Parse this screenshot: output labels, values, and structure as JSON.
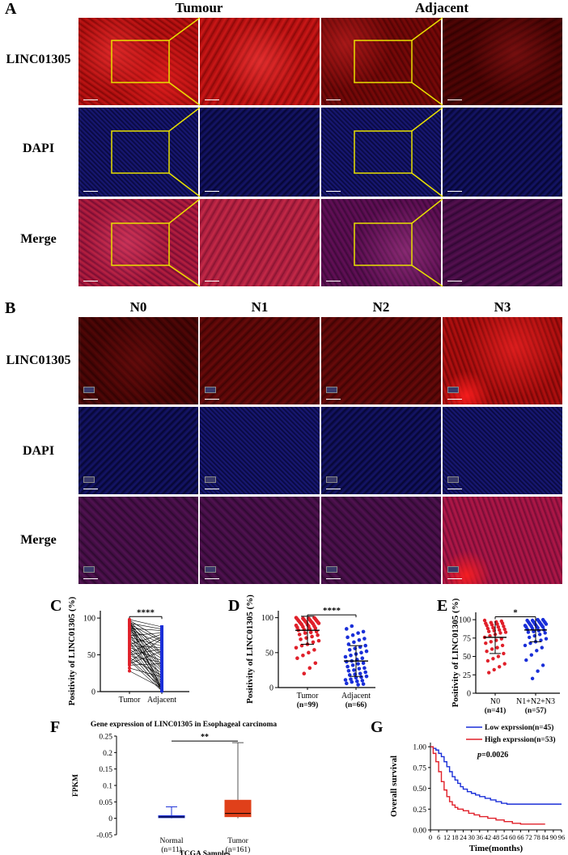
{
  "panelA": {
    "letter": "A",
    "columns": [
      "Tumour",
      "Adjacent"
    ],
    "rows": [
      "LINC01305",
      "DAPI",
      "Merge"
    ]
  },
  "panelB": {
    "letter": "B",
    "columns": [
      "N0",
      "N1",
      "N2",
      "N3"
    ],
    "rows": [
      "LINC01305",
      "DAPI",
      "Merge"
    ]
  },
  "panelC": {
    "letter": "C"
  },
  "panelD": {
    "letter": "D"
  },
  "panelE": {
    "letter": "E"
  },
  "panelF": {
    "letter": "F"
  },
  "panelG": {
    "letter": "G"
  },
  "chart_data": [
    {
      "id": "C",
      "type": "scatter",
      "ylabel": "Positivity of LINC01305 (%)",
      "categories": [
        "Tumor",
        "Adjacent"
      ],
      "yticks": [
        0,
        50,
        100
      ],
      "ylim": [
        0,
        110
      ],
      "significance": "****",
      "paired": true,
      "colors": {
        "Tumor": "#e0202a",
        "Adjacent": "#1a2fd8"
      },
      "tumor_values": [
        98,
        97,
        96,
        95,
        95,
        94,
        93,
        92,
        91,
        90,
        89,
        88,
        86,
        85,
        83,
        82,
        80,
        78,
        76,
        74,
        72,
        70,
        68,
        66,
        64,
        62,
        60,
        58,
        56,
        54,
        52,
        50,
        48,
        46,
        44,
        42,
        40,
        38,
        36,
        32,
        28
      ],
      "adjacent_values": [
        88,
        85,
        83,
        80,
        78,
        75,
        72,
        70,
        68,
        65,
        62,
        60,
        58,
        55,
        52,
        50,
        48,
        45,
        42,
        40,
        38,
        35,
        32,
        30,
        28,
        25,
        22,
        20,
        18,
        15,
        12,
        10,
        8,
        6,
        5,
        4,
        3,
        2,
        2,
        1,
        1
      ]
    },
    {
      "id": "D",
      "type": "scatter",
      "ylabel": "Positivity of LINC01305 (%)",
      "categories": [
        "Tumor\n(n=99)",
        "Adjacent\n(n=66)"
      ],
      "category_lines": [
        [
          "Tumor",
          "(n=99)"
        ],
        [
          "Adjacent",
          "(n=66)"
        ]
      ],
      "yticks": [
        0,
        50,
        100
      ],
      "ylim": [
        0,
        110
      ],
      "significance": "****",
      "mean": [
        82,
        38
      ],
      "sd": [
        20,
        22
      ],
      "colors": {
        "Tumor": "#e0202a",
        "Adjacent": "#1a2fd8"
      },
      "tumor_values": [
        100,
        100,
        99,
        99,
        98,
        98,
        97,
        97,
        96,
        96,
        95,
        95,
        94,
        94,
        93,
        93,
        92,
        92,
        91,
        90,
        90,
        89,
        88,
        88,
        87,
        86,
        85,
        84,
        83,
        82,
        80,
        79,
        78,
        76,
        75,
        73,
        71,
        69,
        67,
        65,
        62,
        60,
        57,
        54,
        50,
        46,
        42,
        35,
        28,
        20
      ],
      "adjacent_values": [
        88,
        84,
        80,
        78,
        75,
        72,
        70,
        68,
        65,
        62,
        60,
        58,
        56,
        54,
        52,
        50,
        48,
        46,
        44,
        42,
        40,
        38,
        37,
        35,
        34,
        32,
        30,
        28,
        27,
        25,
        24,
        22,
        20,
        19,
        18,
        16,
        15,
        14,
        12,
        11,
        10,
        9,
        8,
        6,
        5,
        4
      ]
    },
    {
      "id": "E",
      "type": "scatter",
      "ylabel": "Positivity of LINC01305 (%)",
      "categories": [
        "N0\n(n=41)",
        "N1+N2+N3\n(n=57)"
      ],
      "category_lines": [
        [
          "N0",
          "(n=41)"
        ],
        [
          "N1+N2+N3",
          "(n=57)"
        ]
      ],
      "yticks": [
        0,
        25,
        50,
        75,
        100
      ],
      "ylim": [
        0,
        110
      ],
      "significance": "*",
      "mean": [
        76,
        86
      ],
      "sd": [
        22,
        16
      ],
      "colors": {
        "N0": "#e0202a",
        "N1+N2+N3": "#1a2fd8"
      },
      "n0_values": [
        99,
        98,
        97,
        96,
        95,
        95,
        94,
        93,
        92,
        91,
        90,
        89,
        88,
        87,
        86,
        85,
        84,
        83,
        82,
        80,
        78,
        76,
        74,
        72,
        70,
        68,
        65,
        62,
        60,
        57,
        54,
        50,
        47,
        44,
        40,
        36,
        32,
        28
      ],
      "n123_values": [
        100,
        100,
        99,
        99,
        98,
        98,
        97,
        97,
        96,
        96,
        95,
        95,
        94,
        94,
        93,
        93,
        92,
        92,
        91,
        91,
        90,
        90,
        89,
        88,
        87,
        86,
        85,
        84,
        83,
        82,
        80,
        78,
        76,
        74,
        72,
        70,
        68,
        65,
        62,
        58,
        52,
        45,
        38,
        30,
        20
      ]
    },
    {
      "id": "F",
      "type": "box",
      "title": "Gene expression of LINC01305 in Esophageal carcinoma",
      "ylabel": "FPKM",
      "xlabel": "TCGA Samples",
      "categories": [
        "Normal\n(n=11)",
        "Tumor\n(n=161)"
      ],
      "category_lines": [
        [
          "Normal",
          "(n=11)"
        ],
        [
          "Tumor",
          "(n=161)"
        ]
      ],
      "yticks": [
        "-0.05",
        "0",
        "0.05",
        "0.1",
        "0.15",
        "0.2",
        "0.25"
      ],
      "ylim": [
        -0.05,
        0.25
      ],
      "significance": "**",
      "colors": {
        "Normal": "#1a2fd8",
        "Tumor": "#e0401a"
      },
      "boxes": [
        {
          "min": 0,
          "q1": 0.002,
          "median": 0.004,
          "q3": 0.008,
          "max": 0.035
        },
        {
          "min": 0,
          "q1": 0.005,
          "median": 0.015,
          "q3": 0.055,
          "max": 0.23
        }
      ]
    },
    {
      "id": "G",
      "type": "line",
      "ylabel": "Overall survival",
      "xlabel": "Time(months)",
      "xticks": [
        0,
        6,
        12,
        18,
        24,
        30,
        36,
        42,
        48,
        54,
        60,
        66,
        72,
        78,
        84,
        90,
        96
      ],
      "yticks": [
        "0.00",
        "0.25",
        "0.50",
        "0.75",
        "1.00"
      ],
      "xlim": [
        0,
        96
      ],
      "ylim": [
        0,
        1.05
      ],
      "pvalue_label": "p",
      "pvalue_text": "=0.0026",
      "series": [
        {
          "name": "Low exprssion(n=45)",
          "color": "#1a2fd8",
          "x": [
            0,
            2,
            4,
            6,
            8,
            10,
            12,
            14,
            16,
            18,
            20,
            22,
            24,
            27,
            30,
            33,
            36,
            40,
            44,
            48,
            52,
            56,
            96
          ],
          "y": [
            1.0,
            0.98,
            0.96,
            0.92,
            0.88,
            0.82,
            0.76,
            0.7,
            0.64,
            0.6,
            0.56,
            0.52,
            0.49,
            0.46,
            0.44,
            0.42,
            0.4,
            0.38,
            0.36,
            0.34,
            0.32,
            0.31,
            0.31
          ]
        },
        {
          "name": "High exprssion(n=53)",
          "color": "#e0202a",
          "x": [
            0,
            2,
            4,
            6,
            8,
            10,
            12,
            14,
            16,
            18,
            20,
            24,
            28,
            32,
            36,
            42,
            48,
            54,
            60,
            66,
            72,
            84
          ],
          "y": [
            1.0,
            0.92,
            0.82,
            0.7,
            0.58,
            0.48,
            0.4,
            0.34,
            0.3,
            0.27,
            0.25,
            0.23,
            0.2,
            0.18,
            0.16,
            0.14,
            0.12,
            0.1,
            0.08,
            0.07,
            0.07,
            0.07
          ]
        }
      ]
    }
  ]
}
